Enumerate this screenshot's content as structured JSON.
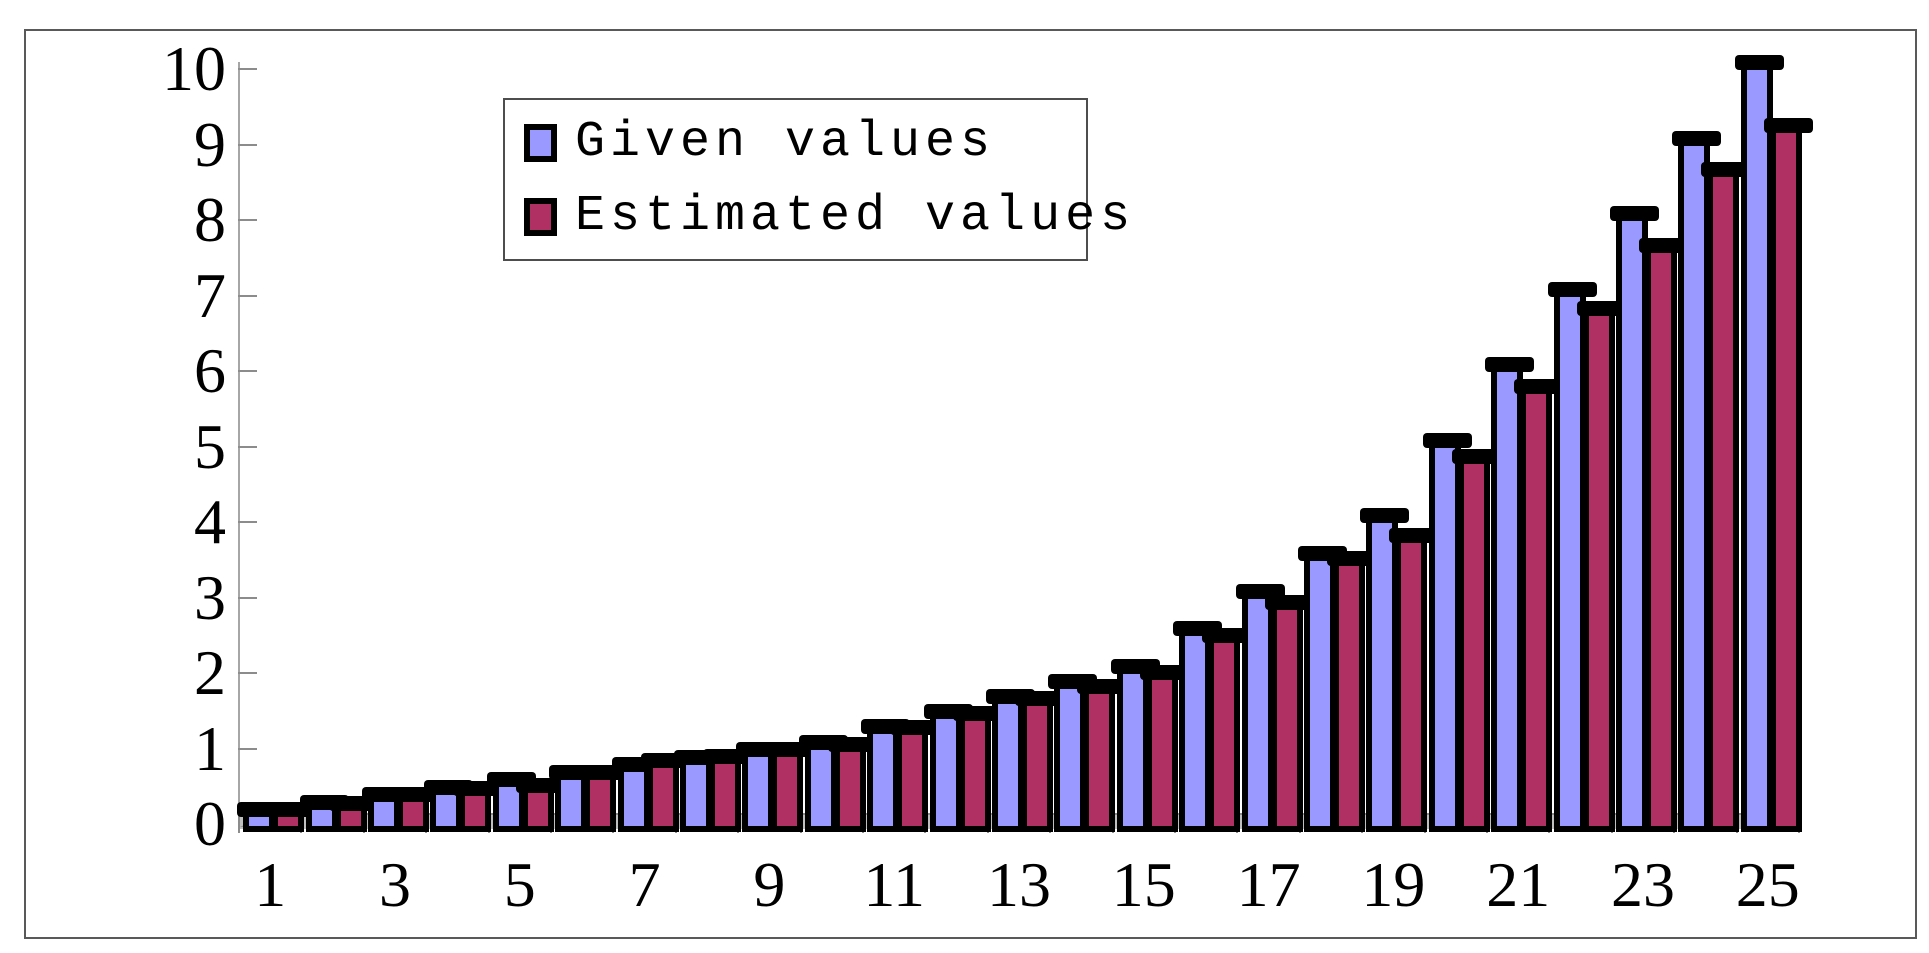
{
  "chart_data": {
    "type": "bar",
    "title": "",
    "categories": [
      1,
      2,
      3,
      4,
      5,
      6,
      7,
      8,
      9,
      10,
      11,
      12,
      13,
      14,
      15,
      16,
      17,
      18,
      19,
      20,
      21,
      22,
      23,
      24,
      25
    ],
    "x_axis_tick_labels": [
      "1",
      "3",
      "5",
      "7",
      "9",
      "11",
      "13",
      "15",
      "17",
      "19",
      "21",
      "23",
      "25"
    ],
    "y_ticks": [
      0,
      1,
      2,
      3,
      4,
      5,
      6,
      7,
      8,
      9,
      10
    ],
    "ylim": [
      0,
      10
    ],
    "grid": false,
    "legend_position": "inside-top-left",
    "series": [
      {
        "name": "Given values",
        "color": "#9999FF",
        "values": [
          0.1,
          0.2,
          0.3,
          0.4,
          0.5,
          0.6,
          0.7,
          0.8,
          0.9,
          1.0,
          1.2,
          1.4,
          1.6,
          1.8,
          2.0,
          2.5,
          3.0,
          3.5,
          4.0,
          5.0,
          6.0,
          7.0,
          8.0,
          9.0,
          10.0
        ]
      },
      {
        "name": "Estimated values",
        "color": "#B03063",
        "values": [
          0.1,
          0.19,
          0.3,
          0.39,
          0.42,
          0.59,
          0.75,
          0.81,
          0.9,
          0.97,
          1.19,
          1.38,
          1.58,
          1.73,
          1.92,
          2.41,
          2.85,
          3.43,
          3.74,
          4.78,
          5.71,
          6.74,
          7.58,
          8.58,
          9.17
        ]
      }
    ],
    "colors": {
      "bar_outline": "#000000",
      "floor": "#C0C0C0",
      "axis": "#A6A6A6",
      "frame_border": "#595959",
      "text": "#000000"
    }
  }
}
